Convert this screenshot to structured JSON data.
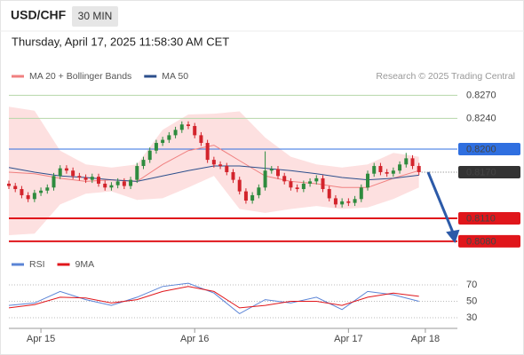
{
  "header": {
    "symbol": "USD/CHF",
    "timeframe": "30 MIN",
    "timestamp": "Thursday, April 17, 2025 11:58:30 AM CET",
    "source": "Research © 2025 Trading Central"
  },
  "chart_data": [
    {
      "type": "candlestick",
      "up_color": "#2e8b3e",
      "down_color": "#d3242c",
      "xlim": [
        -5,
        65
      ],
      "ylim": [
        0.807,
        0.829
      ],
      "candles": {
        "x": [
          -5,
          -4,
          -3,
          -2,
          -1,
          0,
          1,
          2,
          3,
          4,
          5,
          6,
          7,
          8,
          9,
          10,
          11,
          12,
          13,
          14,
          15,
          16,
          17,
          18,
          19,
          20,
          21,
          22,
          23,
          24,
          25,
          26,
          27,
          28,
          29,
          30,
          31,
          32,
          33,
          34,
          35,
          36,
          37,
          38,
          39,
          40,
          41,
          42,
          43,
          44,
          45,
          46,
          47,
          48,
          49,
          50,
          51,
          52,
          53,
          54,
          55,
          56,
          57,
          58,
          59
        ],
        "open": [
          0.8155,
          0.8152,
          0.8148,
          0.814,
          0.8135,
          0.8143,
          0.8146,
          0.815,
          0.8165,
          0.8175,
          0.8172,
          0.8165,
          0.8163,
          0.816,
          0.8164,
          0.8155,
          0.815,
          0.8153,
          0.8158,
          0.8152,
          0.816,
          0.8178,
          0.8186,
          0.8198,
          0.8208,
          0.8212,
          0.8218,
          0.8225,
          0.8232,
          0.823,
          0.8218,
          0.8208,
          0.8186,
          0.818,
          0.8178,
          0.817,
          0.816,
          0.8145,
          0.8133,
          0.814,
          0.815,
          0.8172,
          0.8174,
          0.8165,
          0.8158,
          0.815,
          0.8148,
          0.8155,
          0.8158,
          0.8162,
          0.8148,
          0.8136,
          0.8128,
          0.8132,
          0.813,
          0.8135,
          0.815,
          0.8168,
          0.8178,
          0.817,
          0.8168,
          0.8172,
          0.818,
          0.8188,
          0.8178
        ],
        "high": [
          0.8159,
          0.8156,
          0.8152,
          0.8144,
          0.8147,
          0.815,
          0.8154,
          0.8169,
          0.8179,
          0.8179,
          0.8176,
          0.8169,
          0.8167,
          0.8168,
          0.8168,
          0.8159,
          0.8157,
          0.8162,
          0.8162,
          0.8164,
          0.8182,
          0.819,
          0.8202,
          0.8212,
          0.8216,
          0.8222,
          0.8229,
          0.8236,
          0.8236,
          0.8234,
          0.8222,
          0.8212,
          0.819,
          0.8184,
          0.8182,
          0.8174,
          0.8164,
          0.8149,
          0.8144,
          0.8154,
          0.8197,
          0.8178,
          0.8178,
          0.8169,
          0.8162,
          0.8154,
          0.8159,
          0.8162,
          0.8166,
          0.8166,
          0.8152,
          0.814,
          0.8136,
          0.8136,
          0.8139,
          0.8154,
          0.8172,
          0.8182,
          0.8182,
          0.8174,
          0.8176,
          0.8184,
          0.8195,
          0.8192,
          0.8182
        ],
        "low": [
          0.8148,
          0.8144,
          0.8136,
          0.8131,
          0.8131,
          0.8139,
          0.8142,
          0.8146,
          0.8161,
          0.8168,
          0.8161,
          0.8159,
          0.8156,
          0.8156,
          0.8151,
          0.8146,
          0.8146,
          0.8149,
          0.8148,
          0.8148,
          0.8156,
          0.8174,
          0.8182,
          0.8194,
          0.8204,
          0.8208,
          0.8214,
          0.8221,
          0.8226,
          0.8214,
          0.8204,
          0.8182,
          0.8176,
          0.8174,
          0.8166,
          0.8156,
          0.8141,
          0.8129,
          0.8129,
          0.8136,
          0.8146,
          0.8168,
          0.8161,
          0.8154,
          0.8146,
          0.8144,
          0.8144,
          0.8151,
          0.8154,
          0.8144,
          0.8132,
          0.8124,
          0.8124,
          0.8126,
          0.8126,
          0.8131,
          0.8146,
          0.8164,
          0.8166,
          0.8164,
          0.8164,
          0.8168,
          0.8176,
          0.8174,
          0.8166
        ],
        "close": [
          0.8152,
          0.8148,
          0.814,
          0.8135,
          0.8143,
          0.8146,
          0.815,
          0.8165,
          0.8175,
          0.8172,
          0.8165,
          0.8163,
          0.816,
          0.8164,
          0.8155,
          0.815,
          0.8153,
          0.8158,
          0.8152,
          0.816,
          0.8178,
          0.8186,
          0.8198,
          0.8208,
          0.8212,
          0.8218,
          0.8225,
          0.8232,
          0.823,
          0.8218,
          0.8208,
          0.8186,
          0.818,
          0.8178,
          0.817,
          0.816,
          0.8145,
          0.8133,
          0.814,
          0.815,
          0.8172,
          0.8174,
          0.8165,
          0.8158,
          0.815,
          0.8148,
          0.8155,
          0.8158,
          0.8162,
          0.8148,
          0.8136,
          0.8128,
          0.8132,
          0.813,
          0.8135,
          0.815,
          0.8168,
          0.8178,
          0.817,
          0.8168,
          0.8172,
          0.818,
          0.8188,
          0.8178,
          0.817
        ]
      },
      "series": [
        {
          "name": "MA 20 + Bollinger Bands",
          "color": "#f08080",
          "band_color": "#fde0e0",
          "x": [
            -5,
            -1,
            3,
            7,
            11,
            15,
            19,
            23,
            27,
            31,
            35,
            39,
            43,
            47,
            51,
            55,
            59
          ],
          "values": [
            0.817,
            0.8168,
            0.8162,
            0.8158,
            0.816,
            0.8158,
            0.818,
            0.8198,
            0.8205,
            0.8185,
            0.8165,
            0.8158,
            0.8155,
            0.815,
            0.815,
            0.8162,
            0.8172
          ],
          "upper": [
            0.8255,
            0.825,
            0.8198,
            0.818,
            0.8176,
            0.818,
            0.8225,
            0.8245,
            0.8246,
            0.8249,
            0.8215,
            0.819,
            0.818,
            0.8176,
            0.818,
            0.8195,
            0.819
          ],
          "lower": [
            0.8088,
            0.809,
            0.8128,
            0.8142,
            0.8145,
            0.8134,
            0.8136,
            0.815,
            0.8165,
            0.8122,
            0.8117,
            0.8122,
            0.8126,
            0.8122,
            0.8124,
            0.8135,
            0.815
          ]
        },
        {
          "name": "MA 50",
          "color": "#2c4f8c",
          "x": [
            -5,
            -1,
            3,
            7,
            11,
            15,
            19,
            23,
            27,
            31,
            35,
            39,
            43,
            47,
            51,
            55,
            59
          ],
          "values": [
            0.8176,
            0.817,
            0.8165,
            0.8163,
            0.816,
            0.8158,
            0.8165,
            0.8172,
            0.8178,
            0.8178,
            0.8175,
            0.8172,
            0.8168,
            0.8163,
            0.816,
            0.8162,
            0.8166
          ]
        }
      ],
      "levels": [
        {
          "value": 0.827,
          "label": "0.8270",
          "color": "#6aa84f",
          "line_color": "#b6d7a8",
          "boxed": false,
          "line_width": 1
        },
        {
          "value": 0.824,
          "label": "0.8240",
          "color": "#6aa84f",
          "line_color": "#b6d7a8",
          "boxed": false,
          "line_width": 1
        },
        {
          "value": 0.82,
          "label": "0.8200",
          "color": "#2f6fe0",
          "line_color": "#2f6fe0",
          "boxed": true,
          "line_width": 1
        },
        {
          "value": 0.811,
          "label": "0.8110",
          "color": "#e0161b",
          "line_color": "#e0161b",
          "boxed": true,
          "line_width": 2
        },
        {
          "value": 0.808,
          "label": "0.8080",
          "color": "#e0161b",
          "line_color": "#e0161b",
          "boxed": true,
          "line_width": 2
        }
      ],
      "last_price": {
        "value": 0.817,
        "label": "0.8170",
        "color": "#333333"
      }
    },
    {
      "type": "line",
      "xlim": [
        -5,
        65
      ],
      "ylim": [
        20,
        80
      ],
      "yticks": [
        70,
        50,
        30
      ],
      "xticks": [
        {
          "value": 0,
          "label": "Apr 15"
        },
        {
          "value": 24,
          "label": "Apr 16"
        },
        {
          "value": 48,
          "label": "Apr 17"
        },
        {
          "value": 60,
          "label": "Apr 18"
        }
      ],
      "series": [
        {
          "name": "RSI",
          "color": "#5b84d6",
          "x": [
            -5,
            -1,
            3,
            7,
            11,
            15,
            19,
            23,
            27,
            31,
            35,
            39,
            43,
            47,
            51,
            55,
            59
          ],
          "values": [
            45,
            48,
            62,
            52,
            45,
            55,
            68,
            72,
            60,
            35,
            52,
            48,
            55,
            40,
            62,
            58,
            50
          ]
        },
        {
          "name": "9MA",
          "color": "#e0161b",
          "x": [
            -5,
            -1,
            3,
            7,
            11,
            15,
            19,
            23,
            27,
            31,
            35,
            39,
            43,
            47,
            51,
            55,
            59
          ],
          "values": [
            42,
            46,
            55,
            54,
            48,
            52,
            62,
            68,
            62,
            42,
            45,
            50,
            50,
            45,
            55,
            60,
            56
          ]
        }
      ]
    }
  ]
}
